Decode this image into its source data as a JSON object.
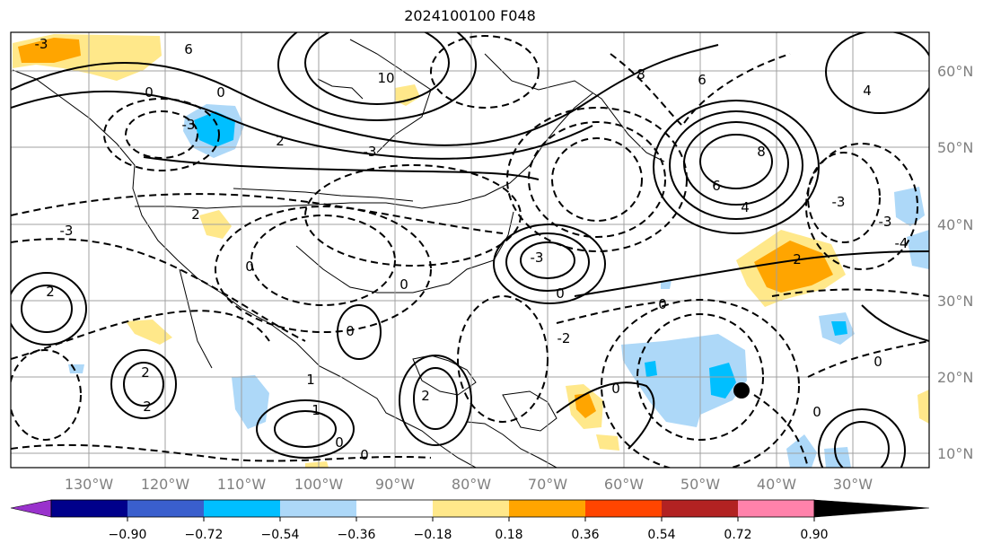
{
  "title": "2024100100 F048",
  "lat_labels": [
    "60°N",
    "50°N",
    "40°N",
    "30°N",
    "20°N",
    "10°N"
  ],
  "lon_labels": [
    "130°W",
    "120°W",
    "110°W",
    "100°W",
    "90°W",
    "80°W",
    "70°W",
    "60°W",
    "50°W",
    "40°W",
    "30°W"
  ],
  "colorbar": {
    "ticks": [
      "−0.90",
      "−0.72",
      "−0.54",
      "−0.36",
      "−0.18",
      "0.18",
      "0.36",
      "0.54",
      "0.72",
      "0.90"
    ],
    "colors": [
      "#9932cc",
      "#00008b",
      "#3a5fcd",
      "#00bfff",
      "#add8f8",
      "#ffffff",
      "#ffe88a",
      "#ffa500",
      "#ff4500",
      "#b22222",
      "#ff82ab"
    ]
  },
  "contour_labels": [
    {
      "text": "-3"
    },
    {
      "text": "6"
    },
    {
      "text": "0"
    },
    {
      "text": "0"
    },
    {
      "text": "10"
    },
    {
      "text": "-3"
    },
    {
      "text": "2"
    },
    {
      "text": "-3"
    },
    {
      "text": "8"
    },
    {
      "text": "6"
    },
    {
      "text": "8"
    },
    {
      "text": "6"
    },
    {
      "text": "4"
    },
    {
      "text": "4"
    },
    {
      "text": "-3"
    },
    {
      "text": "2"
    },
    {
      "text": "-3"
    },
    {
      "text": "2"
    },
    {
      "text": "2"
    },
    {
      "text": "0"
    },
    {
      "text": "0"
    },
    {
      "text": "0"
    },
    {
      "text": "0"
    },
    {
      "text": "2"
    },
    {
      "text": "2"
    },
    {
      "text": "1"
    },
    {
      "text": "1"
    },
    {
      "text": "0"
    },
    {
      "text": "0"
    },
    {
      "text": "0"
    },
    {
      "text": "-3"
    },
    {
      "text": "0"
    },
    {
      "text": "2"
    },
    {
      "text": "-3"
    },
    {
      "text": "-4"
    },
    {
      "text": "-2"
    },
    {
      "text": "0"
    },
    {
      "text": "0"
    }
  ],
  "marker": {
    "label": "",
    "color": "#000000"
  }
}
